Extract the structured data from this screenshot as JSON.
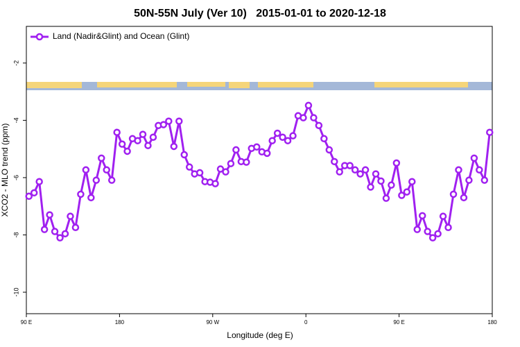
{
  "chart_data": {
    "type": "line",
    "title": "50N-55N July (Ver 10)   2015-01-01 to 2020-12-18",
    "x_label": "Longitude (deg E)",
    "y_label": "XCO2 - MLO trend (ppm)",
    "legend": "top-left",
    "xlim": [
      90,
      540
    ],
    "xticks": [
      {
        "value": 90,
        "label": "90 E"
      },
      {
        "value": 180,
        "label": "180"
      },
      {
        "value": 270,
        "label": "90 W"
      },
      {
        "value": 360,
        "label": "0"
      },
      {
        "value": 450,
        "label": "90 E"
      },
      {
        "value": 540,
        "label": "180"
      }
    ],
    "ylim": [
      -10.75,
      -0.72
    ],
    "yticks": [
      -2,
      -4,
      -6,
      -8,
      -10
    ],
    "x": [
      92.5,
      97.5,
      102.5,
      107.5,
      112.5,
      117.5,
      122.5,
      127.5,
      132.5,
      137.5,
      142.5,
      147.5,
      152.5,
      157.5,
      162.5,
      167.5,
      172.5,
      177.5,
      182.5,
      187.5,
      192.5,
      197.5,
      202.5,
      207.5,
      212.5,
      217.5,
      222.5,
      227.5,
      232.5,
      237.5,
      242.5,
      247.5,
      252.5,
      257.5,
      262.5,
      267.5,
      272.5,
      277.5,
      282.5,
      287.5,
      292.5,
      297.5,
      302.5,
      307.5,
      312.5,
      317.5,
      322.5,
      327.5,
      332.5,
      337.5,
      342.5,
      347.5,
      352.5,
      357.5,
      362.5,
      367.5,
      372.5,
      377.5,
      382.5,
      387.5,
      392.5,
      397.5,
      402.5,
      407.5,
      412.5,
      417.5,
      422.5,
      427.5,
      432.5,
      437.5,
      442.5,
      447.5,
      452.5,
      457.5,
      462.5,
      467.5,
      472.5,
      477.5,
      482.5,
      487.5,
      492.5,
      497.5,
      502.5,
      507.5,
      512.5,
      517.5,
      522.5,
      527.5,
      532.5,
      537.5
    ],
    "series": [
      {
        "name": "Land (Nadir&Glint) and Ocean (Glint)",
        "color": "#a020f0",
        "values": [
          -6.65,
          -6.53,
          -6.14,
          -7.81,
          -7.3,
          -7.88,
          -8.1,
          -7.96,
          -7.35,
          -7.74,
          -6.58,
          -5.73,
          -6.7,
          -6.09,
          -5.32,
          -5.73,
          -6.09,
          -4.42,
          -4.83,
          -5.08,
          -4.64,
          -4.71,
          -4.49,
          -4.88,
          -4.59,
          -4.18,
          -4.15,
          -4.03,
          -4.91,
          -4.03,
          -5.2,
          -5.63,
          -5.87,
          -5.83,
          -6.14,
          -6.16,
          -6.21,
          -5.7,
          -5.8,
          -5.51,
          -5.03,
          -5.44,
          -5.46,
          -4.98,
          -4.93,
          -5.1,
          -5.15,
          -4.71,
          -4.45,
          -4.59,
          -4.71,
          -4.54,
          -3.84,
          -3.91,
          -3.48,
          -3.91,
          -4.18,
          -4.64,
          -5.03,
          -5.44,
          -5.8,
          -5.58,
          -5.58,
          -5.73,
          -5.87,
          -5.73,
          -6.33,
          -5.87,
          -6.12,
          -6.72,
          -6.26,
          -5.49,
          -6.62,
          -6.5,
          -6.14,
          -7.81,
          -7.33,
          -7.88,
          -8.1,
          -7.96,
          -7.35,
          -7.74,
          -6.58,
          -5.73,
          -6.7,
          -6.09,
          -5.32,
          -5.73,
          -6.09,
          -4.42
        ]
      }
    ]
  }
}
